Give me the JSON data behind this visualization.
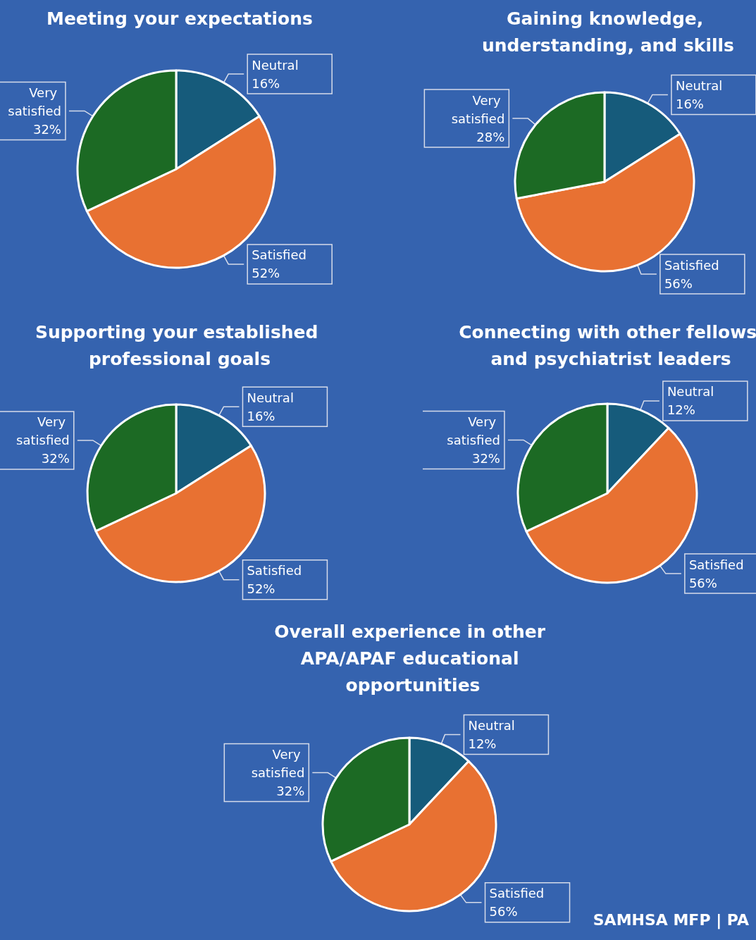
{
  "chart_data": [
    {
      "type": "pie",
      "title": "Meeting your expectations",
      "categories": [
        "Neutral",
        "Satisfied",
        "Very satisfied"
      ],
      "values": [
        16,
        52,
        32
      ],
      "value_labels": [
        "16%",
        "52%",
        "32%"
      ],
      "colors": [
        "#165b7b",
        "#e87132",
        "#1c6a24"
      ]
    },
    {
      "type": "pie",
      "title": "Gaining knowledge, understanding, and skills",
      "categories": [
        "Neutral",
        "Satisfied",
        "Very satisfied"
      ],
      "values": [
        16,
        56,
        28
      ],
      "value_labels": [
        "16%",
        "56%",
        "28%"
      ],
      "colors": [
        "#165b7b",
        "#e87132",
        "#1c6a24"
      ]
    },
    {
      "type": "pie",
      "title": "Supporting your established professional goals",
      "categories": [
        "Neutral",
        "Satisfied",
        "Very satisfied"
      ],
      "values": [
        16,
        52,
        32
      ],
      "value_labels": [
        "16%",
        "52%",
        "32%"
      ],
      "colors": [
        "#165b7b",
        "#e87132",
        "#1c6a24"
      ]
    },
    {
      "type": "pie",
      "title": "Connecting with other fellows and psychiatrist leaders",
      "categories": [
        "Neutral",
        "Satisfied",
        "Very satisfied"
      ],
      "values": [
        12,
        56,
        32
      ],
      "value_labels": [
        "12%",
        "56%",
        "32%"
      ],
      "colors": [
        "#165b7b",
        "#e87132",
        "#1c6a24"
      ]
    },
    {
      "type": "pie",
      "title": "Overall experience in other APA/APAF educational opportunities",
      "categories": [
        "Neutral",
        "Satisfied",
        "Very satisfied"
      ],
      "values": [
        12,
        56,
        32
      ],
      "value_labels": [
        "12%",
        "56%",
        "32%"
      ],
      "colors": [
        "#165b7b",
        "#e87132",
        "#1c6a24"
      ],
      "annotations": [
        "SAMHSA MFP | PA"
      ]
    }
  ]
}
